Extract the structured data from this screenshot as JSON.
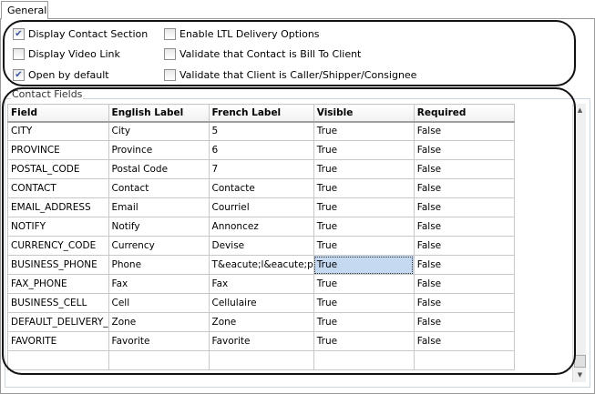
{
  "tab": "General",
  "options": [
    {
      "label": "Display Contact Section",
      "checked": true
    },
    {
      "label": "Display Video Link",
      "checked": false
    },
    {
      "label": "Open by default",
      "checked": true
    },
    {
      "label": "Enable LTL Delivery Options",
      "checked": false
    },
    {
      "label": "Validate that Contact is Bill To Client",
      "checked": false
    },
    {
      "label": "Validate that Client is Caller/Shipper/Consignee",
      "checked": false
    }
  ],
  "group_title": "Contact Fields",
  "columns": [
    "Field",
    "English Label",
    "French Label",
    "Visible",
    "Required"
  ],
  "rows": [
    [
      "CITY",
      "City",
      "5",
      "True",
      "False"
    ],
    [
      "PROVINCE",
      "Province",
      "6",
      "True",
      "False"
    ],
    [
      "POSTAL_CODE",
      "Postal Code",
      "7",
      "True",
      "False"
    ],
    [
      "CONTACT",
      "Contact",
      "Contacte",
      "True",
      "False"
    ],
    [
      "EMAIL_ADDRESS",
      "Email",
      "Courriel",
      "True",
      "False"
    ],
    [
      "NOTIFY",
      "Notify",
      "Annoncez",
      "True",
      "False"
    ],
    [
      "CURRENCY_CODE",
      "Currency",
      "Devise",
      "True",
      "False"
    ],
    [
      "BUSINESS_PHONE",
      "Phone",
      "T&eacute;l&eacute;p",
      "True",
      "False"
    ],
    [
      "FAX_PHONE",
      "Fax",
      "Fax",
      "True",
      "False"
    ],
    [
      "BUSINESS_CELL",
      "Cell",
      "Cellulaire",
      "True",
      "False"
    ],
    [
      "DEFAULT_DELIVERY_",
      "Zone",
      "Zone",
      "True",
      "False"
    ],
    [
      "FAVORITE",
      "Favorite",
      "Favorite",
      "True",
      "False"
    ]
  ],
  "selected_cell": {
    "row": 7,
    "col": 3
  }
}
